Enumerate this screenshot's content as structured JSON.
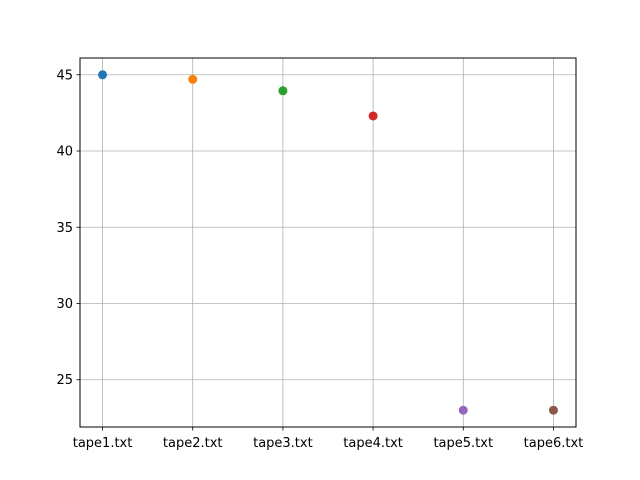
{
  "chart_data": {
    "type": "scatter",
    "title": "",
    "xlabel": "",
    "ylabel": "",
    "categories": [
      "tape1.txt",
      "tape2.txt",
      "tape3.txt",
      "tape4.txt",
      "tape5.txt",
      "tape6.txt"
    ],
    "values": [
      45.0,
      44.7,
      43.95,
      42.3,
      23.0,
      23.0
    ],
    "point_colors": [
      "#1f77b4",
      "#ff7f0e",
      "#2ca02c",
      "#d62728",
      "#9467bd",
      "#8c564b"
    ],
    "ylim": [
      21.9,
      46.1
    ],
    "yticks": [
      25,
      30,
      35,
      40,
      45
    ],
    "grid": true,
    "legend": "none"
  }
}
